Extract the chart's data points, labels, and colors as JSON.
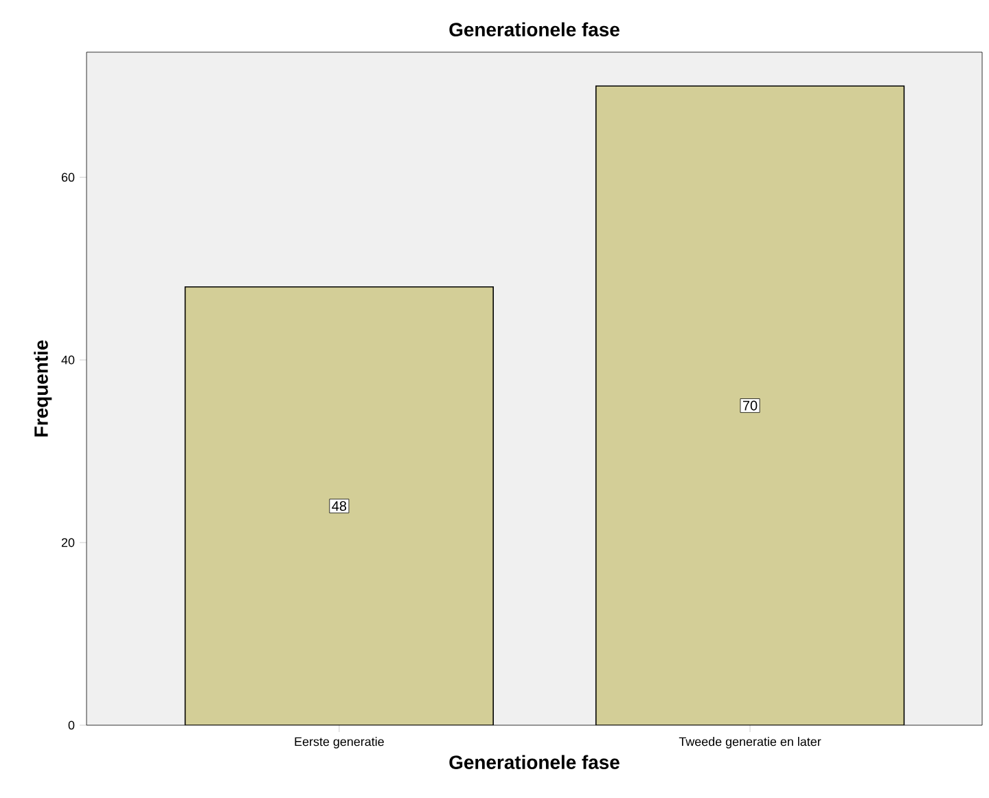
{
  "chart_data": {
    "type": "bar",
    "title": "Generationele fase",
    "xlabel": "Generationele fase",
    "ylabel": "Frequentie",
    "categories": [
      "Eerste generatie",
      "Tweede generatie en later"
    ],
    "values": [
      48,
      70
    ],
    "color": "#d3ce97",
    "ylim": [
      0,
      73.7
    ],
    "yticks": [
      0,
      20,
      40,
      60
    ],
    "data_labels": true,
    "grid": false
  }
}
